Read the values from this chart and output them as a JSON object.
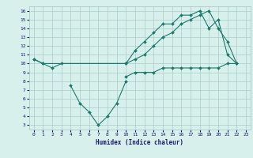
{
  "line1_x": [
    0,
    1,
    2,
    3,
    10,
    11,
    12,
    13,
    14,
    15,
    16,
    17,
    18,
    19,
    20,
    21,
    22
  ],
  "line1_y": [
    10.5,
    10,
    9.5,
    10,
    10,
    11.5,
    12.5,
    13.5,
    14.5,
    14.5,
    15.5,
    15.5,
    16.0,
    14.0,
    15.0,
    11.0,
    10.0
  ],
  "line2_x": [
    0,
    1,
    10,
    11,
    12,
    13,
    14,
    15,
    16,
    17,
    18,
    19,
    20,
    21,
    22
  ],
  "line2_y": [
    10.5,
    10,
    10,
    10.5,
    11.0,
    12.0,
    13.0,
    13.5,
    14.5,
    15.0,
    15.5,
    16.0,
    14.0,
    12.5,
    10.0
  ],
  "line3_x": [
    4,
    5,
    6,
    7,
    8,
    9,
    10
  ],
  "line3_y": [
    7.5,
    5.5,
    4.5,
    3.0,
    4.0,
    5.5,
    8.0
  ],
  "line4_x": [
    10,
    11,
    12,
    13,
    14,
    15,
    16,
    17,
    18,
    19,
    20,
    21,
    22
  ],
  "line4_y": [
    8.5,
    9.0,
    9.0,
    9.0,
    9.5,
    9.5,
    9.5,
    9.5,
    9.5,
    9.5,
    9.5,
    10.0,
    10.0
  ],
  "xlim": [
    -0.5,
    23.5
  ],
  "ylim": [
    2.5,
    16.5
  ],
  "xlabel": "Humidex (Indice chaleur)",
  "xticks": [
    0,
    1,
    2,
    3,
    4,
    5,
    6,
    7,
    8,
    9,
    10,
    11,
    12,
    13,
    14,
    15,
    16,
    17,
    18,
    19,
    20,
    21,
    22,
    23
  ],
  "yticks": [
    3,
    4,
    5,
    6,
    7,
    8,
    9,
    10,
    11,
    12,
    13,
    14,
    15,
    16
  ],
  "line_color": "#1a7a6e",
  "bg_color": "#d8f0ec",
  "grid_color": "#aacccc",
  "marker": "D",
  "marker_size": 2,
  "font_color": "#1a1a6e"
}
